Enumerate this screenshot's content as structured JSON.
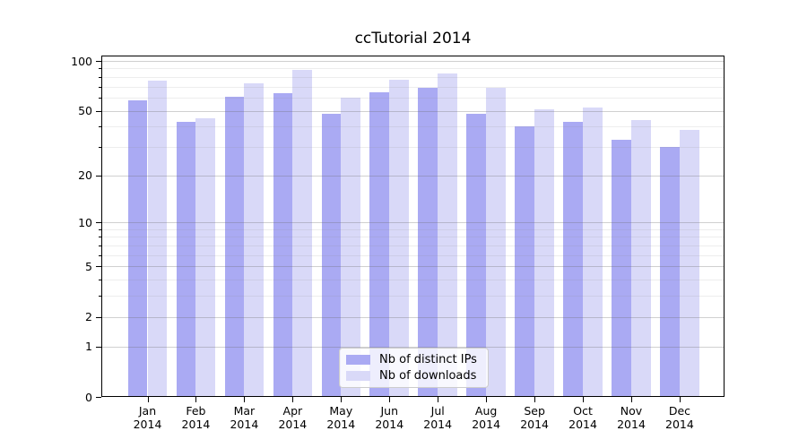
{
  "chart_data": {
    "type": "bar",
    "title": "ccTutorial 2014",
    "categories": [
      "Jan",
      "Feb",
      "Mar",
      "Apr",
      "May",
      "Jun",
      "Jul",
      "Aug",
      "Sep",
      "Oct",
      "Nov",
      "Dec"
    ],
    "x_tick_second_line": "2014",
    "series": [
      {
        "name": "Nb of distinct IPs",
        "color": "#aaaaf3",
        "values": [
          58,
          43,
          61,
          64,
          48,
          65,
          69,
          48,
          40,
          43,
          33,
          30
        ]
      },
      {
        "name": "Nb of downloads",
        "color": "#d9d9f8",
        "values": [
          76,
          45,
          73,
          88,
          60,
          77,
          84,
          69,
          51,
          52,
          44,
          38
        ]
      }
    ],
    "yscale": "log1p",
    "ylim": [
      0,
      108
    ],
    "yticks": [
      0,
      1,
      2,
      5,
      10,
      20,
      50,
      100
    ],
    "yticks_minor": [
      3,
      4,
      6,
      7,
      8,
      9,
      30,
      40,
      60,
      70,
      80,
      90
    ],
    "grid": true,
    "legend": {
      "position": "lower center"
    },
    "colors": {
      "axis": "#000000",
      "grid_major": "rgba(110,110,110,0.32)",
      "grid_minor": "rgba(140,140,140,0.16)",
      "legend_border": "#cccccc",
      "background": "#ffffff"
    }
  }
}
